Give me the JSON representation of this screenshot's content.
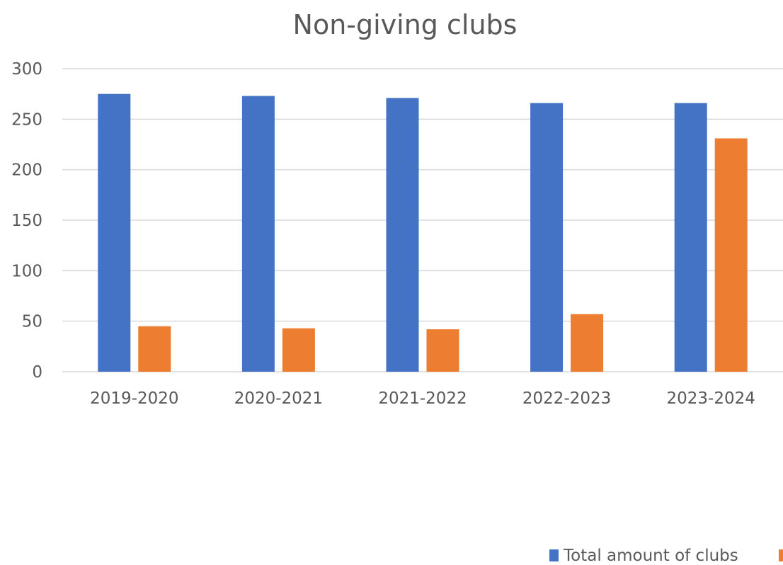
{
  "chart_data": {
    "type": "bar",
    "title": "Non-giving clubs",
    "categories": [
      "2019-2020",
      "2020-2021",
      "2021-2022",
      "2022-2023",
      "2023-2024"
    ],
    "series": [
      {
        "name": "Total amount of clubs",
        "color": "#4472C4",
        "values": [
          275,
          273,
          271,
          266,
          266
        ]
      },
      {
        "name": "",
        "color": "#ED7D31",
        "values": [
          45,
          43,
          42,
          57,
          231
        ]
      }
    ],
    "ylim": [
      0,
      300
    ],
    "yticks": [
      0,
      50,
      100,
      150,
      200,
      250,
      300
    ],
    "xlabel": "",
    "ylabel": "",
    "grid": true,
    "legend_position": "bottom"
  }
}
